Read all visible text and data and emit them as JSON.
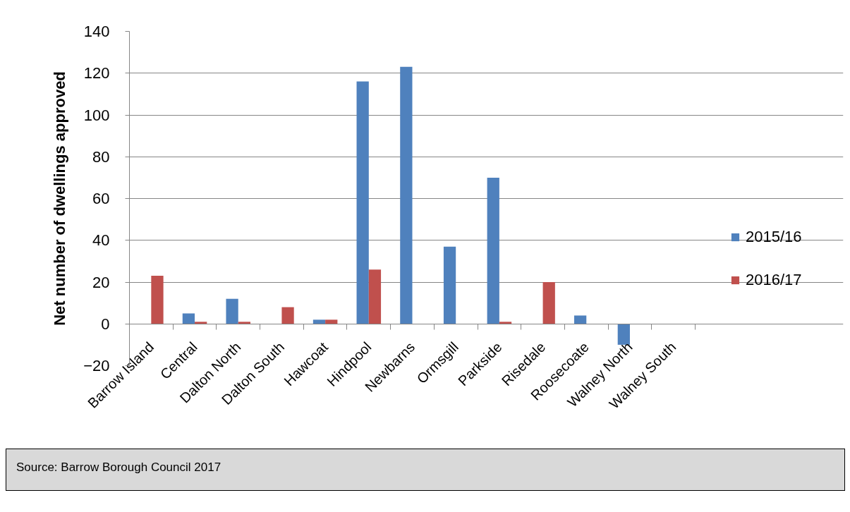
{
  "chart_data": {
    "type": "bar",
    "ylabel": "Net number of dwellings approved",
    "categories": [
      "Barrow Island",
      "Central",
      "Dalton North",
      "Dalton South",
      "Hawcoat",
      "Hindpool",
      "Newbarns",
      "Ormsgill",
      "Parkside",
      "Risedale",
      "Roosecoate",
      "Walney North",
      "Walney South"
    ],
    "series": [
      {
        "name": "2015/16",
        "color": "#4f81bd",
        "values": [
          0,
          5,
          12,
          0,
          2,
          116,
          123,
          37,
          70,
          0,
          4,
          -10,
          0
        ]
      },
      {
        "name": "2016/17",
        "color": "#c0504d",
        "values": [
          23,
          1,
          1,
          8,
          2,
          26,
          0,
          0,
          1,
          20,
          0,
          0,
          0
        ]
      }
    ],
    "ylim": [
      -20,
      140
    ],
    "yticks": [
      -20,
      0,
      20,
      40,
      60,
      80,
      100,
      120,
      140
    ],
    "grid": "y",
    "legend": "right",
    "annotations": [
      "Source: Barrow Borough Council 2017"
    ]
  }
}
